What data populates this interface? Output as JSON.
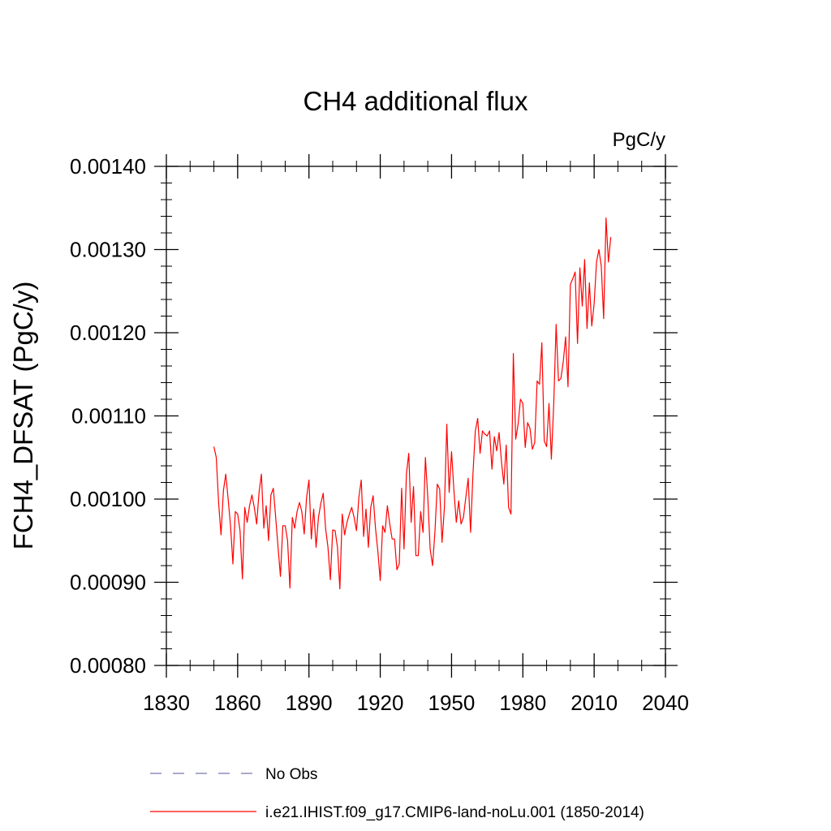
{
  "chart_data": {
    "type": "line",
    "title": "CH4 additional flux",
    "units": "PgC/y",
    "ylabel": "FCH4_DFSAT  (PgC/y)",
    "xlabel": "",
    "xlim": [
      1830,
      2040
    ],
    "ylim": [
      0.0008,
      0.0014
    ],
    "x_ticks": [
      1830,
      1860,
      1890,
      1920,
      1950,
      1980,
      2010,
      2040
    ],
    "x_tick_labels": [
      "1830",
      "1860",
      "1890",
      "1920",
      "1950",
      "1980",
      "2010",
      "2040"
    ],
    "y_ticks": [
      0.0008,
      0.0009,
      0.001,
      0.0011,
      0.0012,
      0.0013,
      0.0014
    ],
    "y_tick_labels": [
      "0.00080",
      "0.00090",
      "0.00100",
      "0.00110",
      "0.00120",
      "0.00130",
      "0.00140"
    ],
    "grid": false,
    "legend_position": "bottom",
    "legend": [
      {
        "label": "No Obs",
        "color": "#7777aa",
        "style": "dashed"
      },
      {
        "label": "i.e21.IHIST.f09_g17.CMIP6-land-noLu.001 (1850-2014)",
        "color": "#ff0000",
        "style": "solid"
      }
    ],
    "series": [
      {
        "name": "i.e21.IHIST.f09_g17.CMIP6-land-noLu.001 (1850-2014)",
        "color": "#ff0000",
        "x_start": 1850,
        "x_step": 1,
        "values": [
          0.001063,
          0.00105,
          0.000995,
          0.000957,
          0.00101,
          0.00103,
          0.001,
          0.000968,
          0.000922,
          0.000985,
          0.000982,
          0.000962,
          0.000904,
          0.00099,
          0.000972,
          0.000992,
          0.001005,
          0.00099,
          0.00097,
          0.001008,
          0.00103,
          0.000965,
          0.000992,
          0.00095,
          0.001005,
          0.001013,
          0.000978,
          0.000942,
          0.000907,
          0.000968,
          0.000968,
          0.00095,
          0.000893,
          0.000978,
          0.000965,
          0.000985,
          0.000996,
          0.000985,
          0.000958,
          0.001002,
          0.001023,
          0.000952,
          0.000988,
          0.000942,
          0.000978,
          0.000995,
          0.001007,
          0.000965,
          0.000942,
          0.000903,
          0.000963,
          0.000962,
          0.000942,
          0.000892,
          0.000982,
          0.000957,
          0.000972,
          0.000982,
          0.00099,
          0.000978,
          0.000962,
          0.001002,
          0.001023,
          0.000955,
          0.000988,
          0.000942,
          0.00099,
          0.001004,
          0.000965,
          0.000937,
          0.000902,
          0.000968,
          0.00096,
          0.000992,
          0.00097,
          0.000952,
          0.000952,
          0.000915,
          0.000922,
          0.001013,
          0.00094,
          0.00103,
          0.001055,
          0.000972,
          0.001015,
          0.000932,
          0.000932,
          0.000985,
          0.00096,
          0.00105,
          0.001002,
          0.00094,
          0.00092,
          0.00096,
          0.001018,
          0.001012,
          0.000948,
          0.00099,
          0.00109,
          0.001008,
          0.001057,
          0.00101,
          0.000972,
          0.000998,
          0.00097,
          0.000978,
          0.001002,
          0.001025,
          0.00096,
          0.00103,
          0.001082,
          0.001097,
          0.001055,
          0.001082,
          0.001078,
          0.001076,
          0.001082,
          0.001036,
          0.001075,
          0.001058,
          0.00108,
          0.001045,
          0.001018,
          0.001065,
          0.00099,
          0.000982,
          0.001175,
          0.001072,
          0.00109,
          0.00112,
          0.001115,
          0.001062,
          0.001092,
          0.001085,
          0.00106,
          0.001068,
          0.001142,
          0.001138,
          0.001188,
          0.00107,
          0.001063,
          0.001115,
          0.001048,
          0.001115,
          0.00121,
          0.001142,
          0.001145,
          0.001165,
          0.001195,
          0.001135,
          0.001258,
          0.001265,
          0.001273,
          0.001187,
          0.001278,
          0.001232,
          0.001288,
          0.001205,
          0.00126,
          0.001208,
          0.001235,
          0.001285,
          0.0013,
          0.00128,
          0.001217,
          0.001338,
          0.001285,
          0.001315
        ]
      }
    ]
  }
}
